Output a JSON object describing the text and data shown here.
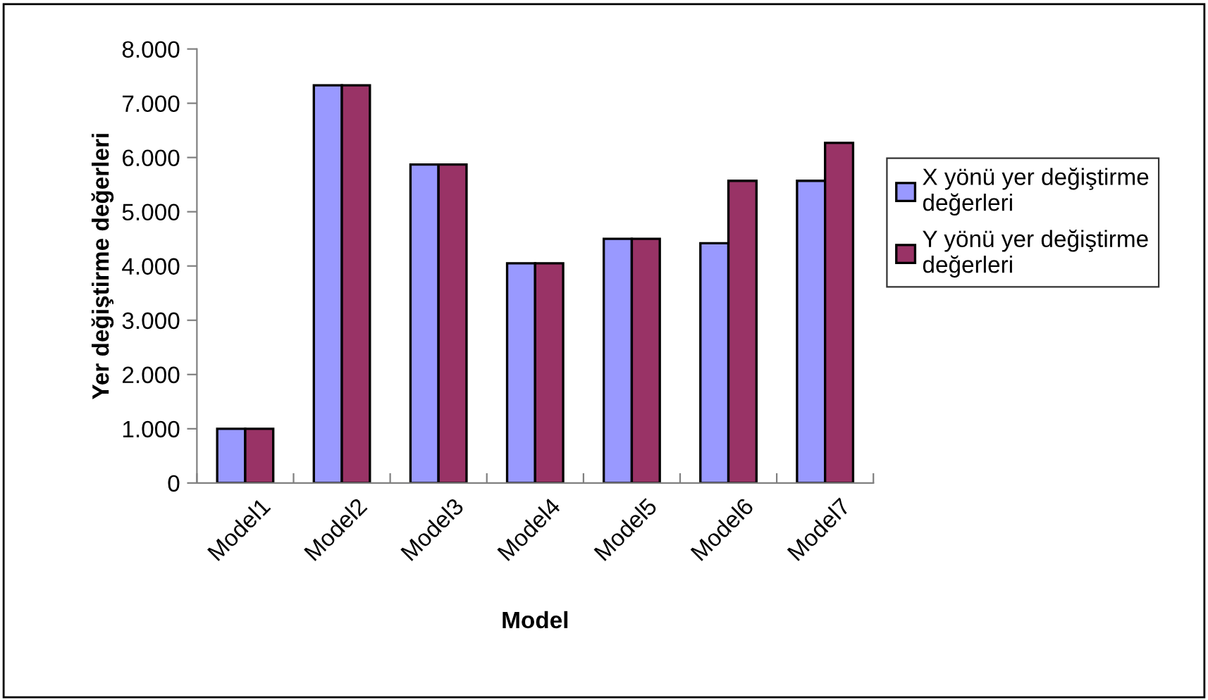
{
  "chart_data": {
    "type": "bar",
    "xlabel": "Model",
    "ylabel": "Yer değiştirme değerleri",
    "categories": [
      "Model1",
      "Model2",
      "Model3",
      "Model4",
      "Model5",
      "Model6",
      "Model7"
    ],
    "series": [
      {
        "name": "X yönü yer değiştirme\ndeğerleri",
        "color": "#9999ff",
        "values": [
          1000,
          7330,
          5870,
          4050,
          4500,
          4420,
          5570
        ]
      },
      {
        "name": "Y yönü yer değiştirme\ndeğerleri",
        "color": "#993366",
        "values": [
          1000,
          7330,
          5870,
          4050,
          4500,
          5570,
          6270
        ]
      }
    ],
    "ylim": [
      0,
      8000
    ],
    "yticks": [
      {
        "value": 0,
        "label": "0"
      },
      {
        "value": 1000,
        "label": "1.000"
      },
      {
        "value": 2000,
        "label": "2.000"
      },
      {
        "value": 3000,
        "label": "3.000"
      },
      {
        "value": 4000,
        "label": "4.000"
      },
      {
        "value": 5000,
        "label": "5.000"
      },
      {
        "value": 6000,
        "label": "6.000"
      },
      {
        "value": 7000,
        "label": "7.000"
      },
      {
        "value": 8000,
        "label": "8.000"
      }
    ],
    "grid": false,
    "legend": "right"
  }
}
